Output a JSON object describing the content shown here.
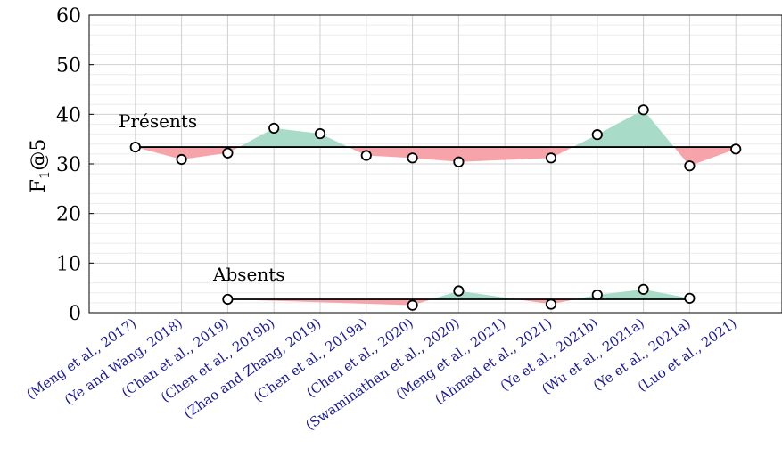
{
  "chart_data": {
    "type": "line",
    "title": "",
    "xlabel": "",
    "ylabel": "F1@5",
    "ylabel_main": "F",
    "ylabel_sub": "1",
    "ylabel_suffix": "@5",
    "ylim": [
      0,
      60
    ],
    "yticks": [
      0,
      10,
      20,
      30,
      40,
      50,
      60
    ],
    "grid": true,
    "categories": [
      "(Meng et al., 2017)",
      "(Ye and Wang, 2018)",
      "(Chan et al., 2019)",
      "(Chen et al., 2019b)",
      "(Zhao and Zhang, 2019)",
      "(Chen et al., 2019a)",
      "(Chen et al., 2020)",
      "(Swaminathan et al., 2020)",
      "(Meng et al., 2021)",
      "(Ahmad et al., 2021)",
      "(Ye et al., 2021b)",
      "(Wu et al., 2021a)",
      "(Ye et al., 2021a)",
      "(Luo et al., 2021)"
    ],
    "series": [
      {
        "name": "Présents",
        "baseline": 33.4,
        "values": [
          33.4,
          30.9,
          32.2,
          37.2,
          36.1,
          31.7,
          31.2,
          30.4,
          null,
          31.2,
          35.9,
          40.9,
          29.6,
          33.0
        ]
      },
      {
        "name": "Absents",
        "baseline": 2.7,
        "values": [
          null,
          null,
          2.7,
          null,
          null,
          null,
          1.5,
          4.4,
          null,
          1.7,
          3.6,
          4.7,
          2.9,
          null
        ]
      }
    ],
    "colors": {
      "above": "#a8dcc9",
      "below": "#f6a4aa",
      "tick_label": "#1a1a99",
      "grid": "#d0d0d0",
      "minor_grid": "#ececec"
    }
  }
}
